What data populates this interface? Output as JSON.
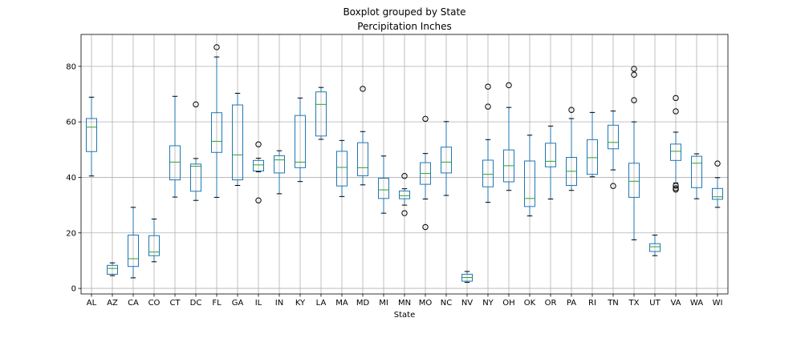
{
  "chart_data": {
    "type": "boxplot",
    "suptitle": "Boxplot grouped by State",
    "title": "Percipitation Inches",
    "xlabel": "State",
    "ylabel": "",
    "ylim": [
      -2,
      91.5
    ],
    "yticks": [
      0,
      20,
      40,
      60,
      80
    ],
    "grid": true,
    "colors": {
      "box": "#1f77b4",
      "median": "#2ca02c",
      "whisker": "#1f77b4",
      "cap": "#000000",
      "flier": "#000000",
      "grid": "#b0b0b0"
    },
    "categories": [
      "AL",
      "AZ",
      "CA",
      "CO",
      "CT",
      "DC",
      "FL",
      "GA",
      "IL",
      "IN",
      "KY",
      "LA",
      "MA",
      "MD",
      "MI",
      "MN",
      "MO",
      "NC",
      "NV",
      "NY",
      "OH",
      "OK",
      "OR",
      "PA",
      "RI",
      "TN",
      "TX",
      "UT",
      "VA",
      "WA",
      "WI"
    ],
    "boxes": [
      {
        "whislo": 40.5,
        "q1": 49.3,
        "med": 58.1,
        "q3": 61.2,
        "whishi": 68.9,
        "fliers": []
      },
      {
        "whislo": 4.6,
        "q1": 5.1,
        "med": 7.2,
        "q3": 8.3,
        "whishi": 9.2,
        "fliers": []
      },
      {
        "whislo": 3.8,
        "q1": 7.9,
        "med": 10.7,
        "q3": 19.2,
        "whishi": 29.2,
        "fliers": []
      },
      {
        "whislo": 9.6,
        "q1": 11.8,
        "med": 13.1,
        "q3": 19.0,
        "whishi": 25.0,
        "fliers": []
      },
      {
        "whislo": 32.9,
        "q1": 39.1,
        "med": 45.5,
        "q3": 51.4,
        "whishi": 69.2,
        "fliers": []
      },
      {
        "whislo": 31.7,
        "q1": 35.0,
        "med": 44.0,
        "q3": 44.8,
        "whishi": 46.8,
        "fliers": [
          66.3
        ]
      },
      {
        "whislo": 32.8,
        "q1": 49.0,
        "med": 53.0,
        "q3": 63.3,
        "whishi": 83.4,
        "fliers": [
          86.9
        ]
      },
      {
        "whislo": 37.1,
        "q1": 39.1,
        "med": 48.1,
        "q3": 66.1,
        "whishi": 70.3,
        "fliers": []
      },
      {
        "whislo": 42.0,
        "q1": 42.3,
        "med": 44.5,
        "q3": 46.1,
        "whishi": 46.9,
        "fliers": [
          51.9,
          31.7
        ]
      },
      {
        "whislo": 34.1,
        "q1": 41.6,
        "med": 46.3,
        "q3": 47.8,
        "whishi": 49.6,
        "fliers": []
      },
      {
        "whislo": 38.5,
        "q1": 43.5,
        "med": 45.5,
        "q3": 62.3,
        "whishi": 68.6,
        "fliers": []
      },
      {
        "whislo": 53.7,
        "q1": 54.9,
        "med": 66.3,
        "q3": 70.8,
        "whishi": 72.4,
        "fliers": []
      },
      {
        "whislo": 33.1,
        "q1": 36.9,
        "med": 43.6,
        "q3": 49.4,
        "whishi": 53.3,
        "fliers": []
      },
      {
        "whislo": 37.3,
        "q1": 40.6,
        "med": 43.5,
        "q3": 52.5,
        "whishi": 56.5,
        "fliers": [
          71.9
        ]
      },
      {
        "whislo": 27.1,
        "q1": 32.4,
        "med": 35.5,
        "q3": 39.7,
        "whishi": 47.7,
        "fliers": []
      },
      {
        "whislo": 30.0,
        "q1": 32.3,
        "med": 33.4,
        "q3": 35.1,
        "whishi": 35.9,
        "fliers": [
          40.5,
          27.1
        ]
      },
      {
        "whislo": 32.2,
        "q1": 37.5,
        "med": 41.4,
        "q3": 45.3,
        "whishi": 48.6,
        "fliers": [
          61.1,
          22.1
        ]
      },
      {
        "whislo": 33.5,
        "q1": 41.6,
        "med": 45.5,
        "q3": 50.9,
        "whishi": 60.1,
        "fliers": []
      },
      {
        "whislo": 2.2,
        "q1": 2.6,
        "med": 3.9,
        "q3": 5.1,
        "whishi": 6.1,
        "fliers": []
      },
      {
        "whislo": 31.0,
        "q1": 36.6,
        "med": 41.1,
        "q3": 46.2,
        "whishi": 53.6,
        "fliers": [
          72.7,
          65.5
        ]
      },
      {
        "whislo": 35.3,
        "q1": 38.4,
        "med": 44.2,
        "q3": 49.9,
        "whishi": 65.2,
        "fliers": [
          73.2
        ]
      },
      {
        "whislo": 26.1,
        "q1": 29.5,
        "med": 32.4,
        "q3": 45.9,
        "whishi": 55.2,
        "fliers": []
      },
      {
        "whislo": 32.2,
        "q1": 43.8,
        "med": 45.8,
        "q3": 52.3,
        "whishi": 58.5,
        "fliers": []
      },
      {
        "whislo": 35.3,
        "q1": 37.1,
        "med": 42.2,
        "q3": 47.2,
        "whishi": 61.2,
        "fliers": [
          64.3
        ]
      },
      {
        "whislo": 40.2,
        "q1": 41.1,
        "med": 47.1,
        "q3": 53.6,
        "whishi": 63.4,
        "fliers": []
      },
      {
        "whislo": 42.7,
        "q1": 50.3,
        "med": 52.6,
        "q3": 58.8,
        "whishi": 63.9,
        "fliers": [
          36.9
        ]
      },
      {
        "whislo": 17.5,
        "q1": 32.8,
        "med": 38.6,
        "q3": 45.1,
        "whishi": 60.0,
        "fliers": [
          79.1,
          77.0,
          67.8
        ]
      },
      {
        "whislo": 11.8,
        "q1": 13.3,
        "med": 15.0,
        "q3": 16.1,
        "whishi": 19.2,
        "fliers": []
      },
      {
        "whislo": 38.0,
        "q1": 46.1,
        "med": 49.4,
        "q3": 52.0,
        "whishi": 56.3,
        "fliers": [
          68.6,
          63.8,
          37.0,
          36.1,
          35.6
        ]
      },
      {
        "whislo": 32.3,
        "q1": 36.3,
        "med": 45.1,
        "q3": 47.6,
        "whishi": 48.5,
        "fliers": []
      },
      {
        "whislo": 29.2,
        "q1": 32.1,
        "med": 33.0,
        "q3": 36.0,
        "whishi": 39.9,
        "fliers": [
          45.0
        ]
      }
    ]
  }
}
